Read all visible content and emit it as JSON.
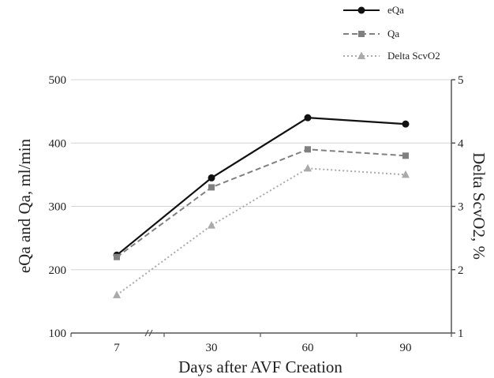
{
  "chart_data": {
    "type": "line",
    "categories": [
      "7",
      "30",
      "60",
      "90"
    ],
    "xlabel": "Days after AVF Creation",
    "ylabel": "eQa and Qa, ml/min",
    "y2label": "Delta ScvO2, %",
    "ylim": [
      100,
      500
    ],
    "y2lim": [
      1,
      5
    ],
    "yticks": [
      "100",
      "200",
      "300",
      "400",
      "500"
    ],
    "y2ticks": [
      "1",
      "2",
      "3",
      "4",
      "5"
    ],
    "grid": "horizontal",
    "legend_position": "top-right",
    "axis_break": "between 7 and 30",
    "series": [
      {
        "name": "eQa",
        "axis": "left",
        "values": [
          223,
          345,
          440,
          430
        ],
        "color": "#111111",
        "marker": "circle",
        "line": "solid"
      },
      {
        "name": "Qa",
        "axis": "left",
        "values": [
          220,
          330,
          390,
          380
        ],
        "color": "#808080",
        "marker": "square",
        "line": "dashed"
      },
      {
        "name": "Delta ScvO2",
        "axis": "right",
        "values": [
          1.6,
          2.7,
          3.6,
          3.5
        ],
        "color": "#aaaaaa",
        "marker": "triangle",
        "line": "dotted"
      }
    ]
  }
}
